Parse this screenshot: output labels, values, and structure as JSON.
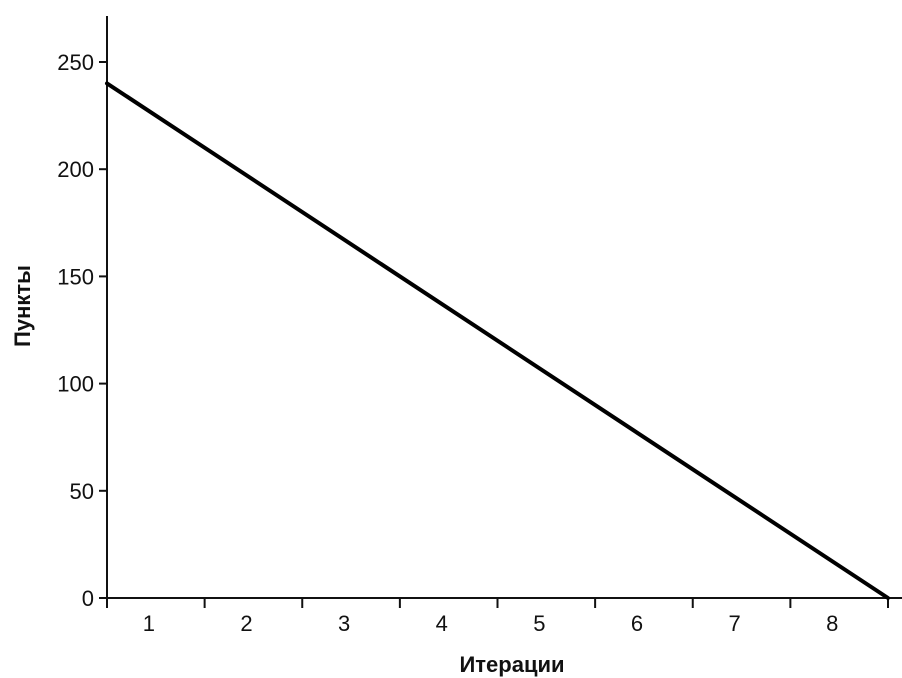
{
  "chart_data": {
    "type": "line",
    "title": "",
    "xlabel": "Итерации",
    "ylabel": "Пункты",
    "categories": [
      "1",
      "2",
      "3",
      "4",
      "5",
      "6",
      "7",
      "8"
    ],
    "x_range": [
      0,
      8
    ],
    "ylim": [
      0,
      270
    ],
    "y_ticks": [
      0,
      50,
      100,
      150,
      200,
      250
    ],
    "grid": false,
    "legend": "none",
    "series": [
      {
        "x": [
          0,
          8
        ],
        "y": [
          240,
          0
        ]
      }
    ]
  },
  "colors": {
    "line": "#000000",
    "axis": "#111111"
  }
}
